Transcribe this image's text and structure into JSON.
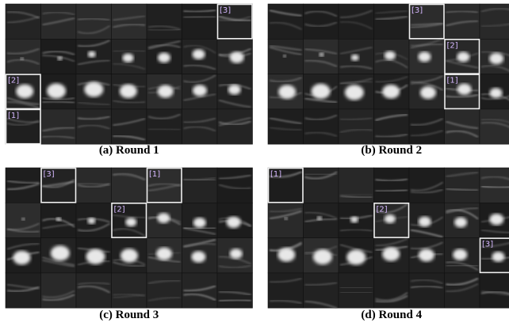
{
  "panels": [
    {
      "caption": "(a) Round 1",
      "boxes": [
        {
          "label": "[3]"
        },
        {
          "label": "[2]"
        },
        {
          "label": "[1]"
        }
      ]
    },
    {
      "caption": "(b) Round 2",
      "boxes": [
        {
          "label": "[3]"
        },
        {
          "label": "[2]"
        },
        {
          "label": "[1]"
        }
      ]
    },
    {
      "caption": "(c) Round 3",
      "boxes": [
        {
          "label": "[3]"
        },
        {
          "label": "[1]"
        },
        {
          "label": "[2]"
        }
      ]
    },
    {
      "caption": "(d) Round 4",
      "boxes": [
        {
          "label": "[1]"
        },
        {
          "label": "[2]"
        },
        {
          "label": "[3]"
        }
      ]
    }
  ]
}
